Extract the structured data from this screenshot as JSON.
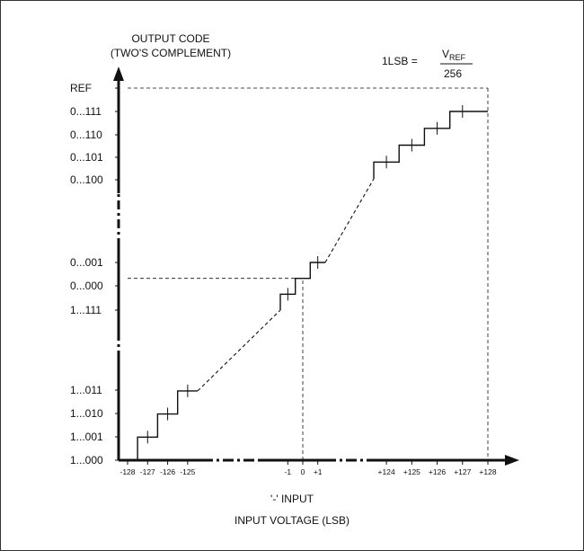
{
  "y_axis_title": [
    "OUTPUT CODE",
    "(TWO'S COMPLEMENT)"
  ],
  "formula": {
    "lhs": "1LSB =",
    "numerator_main": "V",
    "numerator_sub": "REF",
    "denominator": "256"
  },
  "y_tick_labels": [
    "REF",
    "0...111",
    "0...110",
    "0...101",
    "0...100",
    "0...001",
    "0...000",
    "1...111",
    "1...011",
    "1...010",
    "1...001",
    "1...000"
  ],
  "x_tick_labels": [
    "-128",
    "-127",
    "-126",
    "-125",
    "-1",
    "0",
    "+1",
    "+124",
    "+125",
    "+126",
    "+127",
    "+128"
  ],
  "x_sub_label": "'-' INPUT",
  "x_axis_title": "INPUT VOLTAGE (LSB)",
  "colors": {
    "line": "#111111",
    "frame": "#333333",
    "background": "#ffffff"
  },
  "chart_data": {
    "type": "line",
    "title": "",
    "xlabel": "INPUT VOLTAGE (LSB)",
    "ylabel": "OUTPUT CODE (TWO'S COMPLEMENT)",
    "xlim": [
      -128,
      128
    ],
    "series": [
      {
        "segments": [
          {
            "style": "solid",
            "points": [
              [
                -128,
                -128
              ],
              [
                -127.5,
                -128
              ],
              [
                -127.5,
                -127
              ],
              [
                -126.5,
                -127
              ],
              [
                -126.5,
                -126
              ],
              [
                -125.5,
                -126
              ],
              [
                -125.5,
                -125
              ],
              [
                -124.5,
                -125
              ]
            ]
          },
          {
            "style": "dashed",
            "points": [
              [
                -124.5,
                -125
              ],
              [
                -1.5,
                -2
              ]
            ]
          },
          {
            "style": "solid",
            "points": [
              [
                -1.5,
                -2
              ],
              [
                -1.5,
                -1
              ],
              [
                -0.5,
                -1
              ],
              [
                -0.5,
                0
              ],
              [
                0.5,
                0
              ],
              [
                0.5,
                1
              ],
              [
                1.5,
                1
              ]
            ]
          },
          {
            "style": "dashed",
            "points": [
              [
                1.5,
                1
              ],
              [
                123.5,
                123
              ]
            ]
          },
          {
            "style": "solid",
            "points": [
              [
                123.5,
                123
              ],
              [
                123.5,
                124
              ],
              [
                124.5,
                124
              ],
              [
                124.5,
                125
              ],
              [
                125.5,
                125
              ],
              [
                125.5,
                126
              ],
              [
                126.5,
                126
              ],
              [
                126.5,
                127
              ],
              [
                128,
                127
              ]
            ]
          }
        ]
      }
    ],
    "reference_lines": [
      {
        "style": "dashed",
        "points": [
          [
            0,
            -128
          ],
          [
            0,
            0
          ]
        ]
      },
      {
        "style": "dashed",
        "points": [
          [
            -128,
            0
          ],
          [
            0,
            0
          ]
        ]
      },
      {
        "style": "dashed",
        "points": [
          [
            -128,
            128
          ],
          [
            128,
            128
          ]
        ]
      },
      {
        "style": "dashed",
        "points": [
          [
            128,
            128
          ],
          [
            128,
            -128
          ]
        ]
      }
    ]
  }
}
